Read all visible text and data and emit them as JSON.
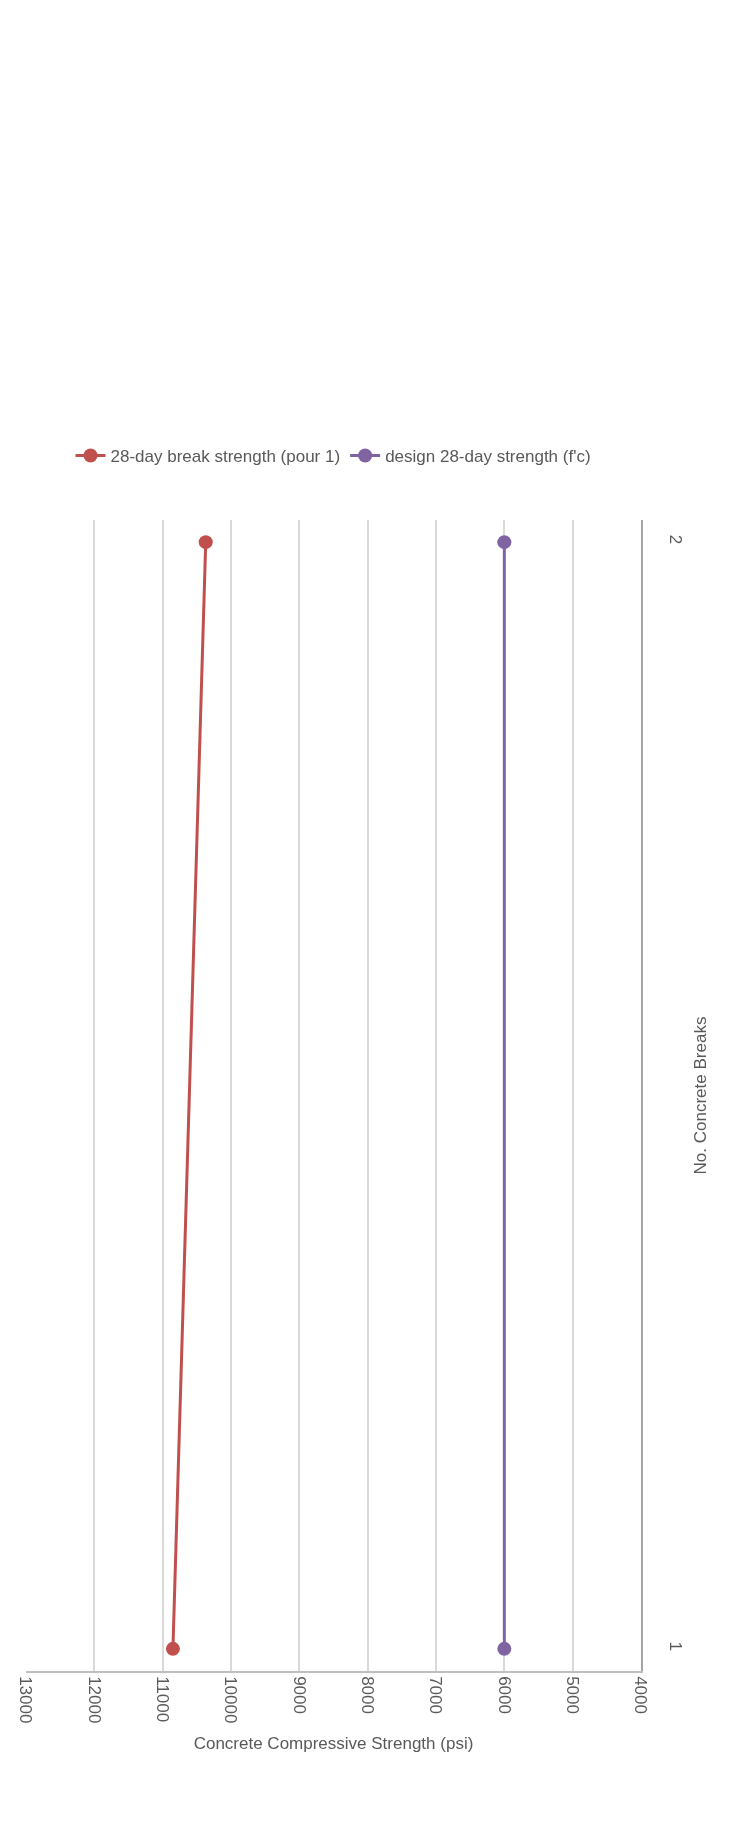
{
  "chart_data": {
    "type": "line",
    "xlabel": "Concrete Compressive Strength (psi)",
    "ylabel": "No. Concrete Breaks",
    "series": [
      {
        "name": "28-day break strength (pour 1)",
        "color": "#c0504d",
        "x": [
          10850,
          10370
        ],
        "values": [
          1,
          2
        ]
      },
      {
        "name": "design 28-day strength (f'c)",
        "color": "#8064a2",
        "x": [
          6000,
          6000
        ],
        "values": [
          1,
          2
        ]
      }
    ],
    "xlim": [
      13000,
      4000
    ],
    "xticks": [
      13000,
      12000,
      11000,
      10000,
      9000,
      8000,
      7000,
      6000,
      5000,
      4000
    ],
    "ylim": [
      0.98,
      2.02
    ],
    "yticks": [
      1,
      2
    ],
    "grid": "x",
    "legend": "top",
    "marker": "circle",
    "line_style": "solid"
  }
}
